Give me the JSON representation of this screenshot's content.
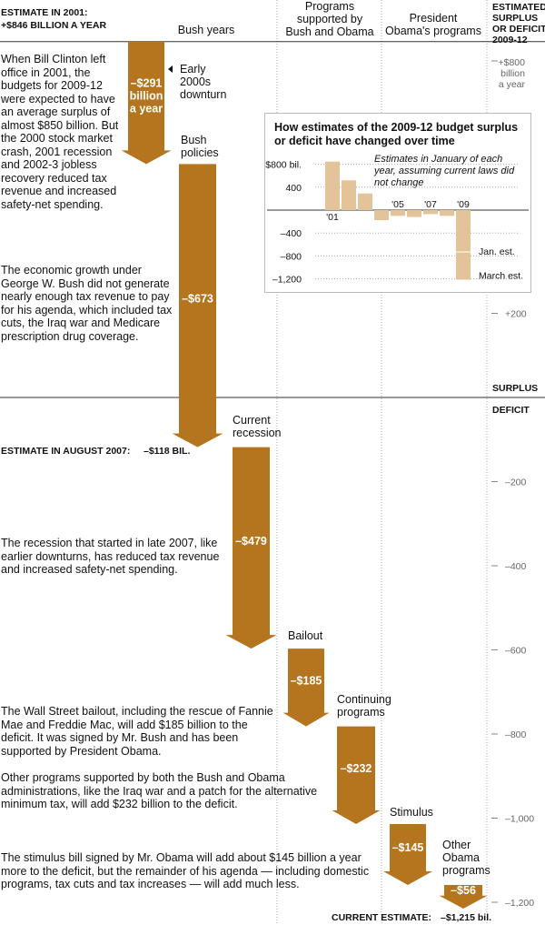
{
  "chart_data": {
    "type": "waterfall",
    "start_label_line1": "ESTIMATE IN 2001:",
    "start_label_line2": "+$846 BILLION A YEAR",
    "right_header": [
      "ESTIMATED",
      "SURPLUS",
      "OR DEFICIT,",
      "2009-12"
    ],
    "columns": [
      {
        "lines": [
          "Bush years"
        ]
      },
      {
        "lines": [
          "Programs",
          "supported by",
          "Bush and Obama"
        ]
      },
      {
        "lines": [
          "President",
          "Obama's programs"
        ]
      }
    ],
    "start_value": 846,
    "steps": [
      {
        "value": -291,
        "bar_label": [
          "–$291",
          "billion",
          "a year"
        ],
        "name_lines": [
          "Early",
          "2000s",
          "downturn"
        ]
      },
      {
        "value": -673,
        "bar_label": [
          "–$673"
        ],
        "name_lines": [
          "Bush",
          "policies"
        ]
      },
      {
        "value": -479,
        "bar_label": [
          "–$479"
        ],
        "name_lines": [
          "Current",
          "recession"
        ]
      },
      {
        "value": -185,
        "bar_label": [
          "–$185"
        ],
        "name_lines": [
          "Bailout"
        ]
      },
      {
        "value": -232,
        "bar_label": [
          "–$232"
        ],
        "name_lines": [
          "Continuing",
          "programs"
        ]
      },
      {
        "value": -145,
        "bar_label": [
          "–$145"
        ],
        "name_lines": [
          "Stimulus"
        ]
      },
      {
        "value": -56,
        "bar_label": [
          "–$56"
        ],
        "name_lines": [
          "Other",
          "Obama",
          "programs"
        ]
      }
    ],
    "axis_ticks": [
      {
        "value": 800,
        "lines": [
          "+$800",
          "billion",
          "a year"
        ]
      },
      {
        "value": 200,
        "lines": [
          "+200"
        ]
      },
      {
        "value": -200,
        "lines": [
          "–200"
        ]
      },
      {
        "value": -400,
        "lines": [
          "–400"
        ]
      },
      {
        "value": -600,
        "lines": [
          "–600"
        ]
      },
      {
        "value": -800,
        "lines": [
          "–800"
        ]
      },
      {
        "value": -1000,
        "lines": [
          "–1,000"
        ]
      },
      {
        "value": -1200,
        "lines": [
          "–1,200"
        ]
      }
    ],
    "zero_labels": {
      "surplus": "SURPLUS",
      "deficit": "DEFICIT"
    },
    "mid_estimate": {
      "label": "ESTIMATE IN AUGUST 2007:",
      "value_label": "–$118 BIL.",
      "value": -118
    },
    "end_estimate": {
      "label": "CURRENT ESTIMATE:",
      "value_label": "–$1,215 bil.",
      "value": -1215
    },
    "inset": {
      "title": "How estimates of the 2009-12 budget surplus or deficit have changed over time",
      "note": "Estimates in January of each year, assuming current laws did not change",
      "years": [
        "2001",
        "2002",
        "2003",
        "2004",
        "2005",
        "2006",
        "2007",
        "2008",
        "2009"
      ],
      "values": [
        846,
        520,
        290,
        -175,
        -100,
        -120,
        -70,
        -100,
        -730
      ],
      "march_estimate": -1215,
      "year_labels": [
        {
          "index": 0,
          "text": "'01"
        },
        {
          "index": 4,
          "text": "'05"
        },
        {
          "index": 6,
          "text": "'07"
        },
        {
          "index": 8,
          "text": "'09"
        }
      ],
      "ticks": [
        {
          "value": 800,
          "text": "+$800 bil."
        },
        {
          "value": 400,
          "text": "400"
        },
        {
          "value": -400,
          "text": "–400"
        },
        {
          "value": -800,
          "text": "–800"
        },
        {
          "value": -1200,
          "text": "–1,200"
        }
      ],
      "jan_label": "Jan. est.",
      "march_label": "March est."
    }
  },
  "paragraphs": [
    "When Bill Clinton left office in 2001, the budgets for 2009-12 were expected to have an average surplus of almost $850 billion. But the 2000 stock market crash, 2001 recession and 2002-3 jobless recovery reduced tax revenue and increased safety-net spending.",
    "The economic growth under George W. Bush did not generate nearly enough tax revenue to pay for his agenda, which included tax cuts, the Iraq war and Medicare prescription drug coverage.",
    "The recession that started in late 2007, like earlier downturns, has reduced tax revenue and increased safety-net spending.",
    "The Wall Street bailout, including the rescue of Fannie Mae and Freddie Mac, will add $185 billion to the deficit. It was signed by Mr. Bush and has been supported by President Obama.",
    "Other programs supported by both the Bush and Obama administrations, like the Iraq war and a patch for the alternative minimum tax, will add $232 billion to the deficit.",
    "The stimulus bill signed by Mr. Obama will add about $145 billion a year more to the deficit, but the remainder of his agenda — including domestic programs, tax cuts and tax increases — will add much less."
  ],
  "colors": {
    "arrow": "#b5751f",
    "inset_bar": "#e3c49a",
    "grid": "#aaaaaa",
    "text": "#111111"
  }
}
